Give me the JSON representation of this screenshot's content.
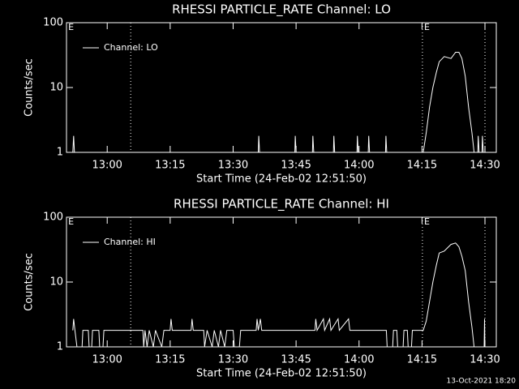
{
  "chart_data": [
    {
      "type": "line",
      "title": "RHESSI PARTICLE_RATE Channel: LO",
      "xlabel": "Start Time (24-Feb-02 12:51:50)",
      "ylabel": "Counts/sec",
      "yscale": "log",
      "legend": "upper left",
      "xlim": [
        770.3,
        872.7
      ],
      "ylim": [
        1,
        100
      ],
      "yticks": [
        1,
        10,
        100
      ],
      "xticks": [
        {
          "value": 780,
          "label": "13:00"
        },
        {
          "value": 795,
          "label": "13:15"
        },
        {
          "value": 810,
          "label": "13:30"
        },
        {
          "value": 825,
          "label": "13:45"
        },
        {
          "value": 840,
          "label": "14:00"
        },
        {
          "value": 855,
          "label": "14:15"
        },
        {
          "value": 870,
          "label": "14:30"
        }
      ],
      "vlines": [
        785.6,
        855.1,
        870.0
      ],
      "flags": [
        {
          "x": 770.7,
          "label": "E"
        },
        {
          "x": 855.5,
          "label": "E"
        }
      ],
      "x": [
        771.8,
        772.0,
        772.2,
        816.0,
        816.1,
        816.3,
        824.7,
        824.8,
        825.0,
        828.9,
        829.0,
        829.2,
        833.9,
        834.0,
        834.2,
        839.5,
        839.6,
        839.8,
        842.2,
        842.3,
        842.5,
        846.3,
        846.4,
        846.6,
        855.3,
        856.0,
        856.8,
        857.6,
        858.4,
        859.1,
        860.3,
        861.9,
        863.0,
        863.8,
        864.5,
        865.3,
        866.1,
        866.9,
        867.4,
        868.3,
        868.4,
        868.6,
        869.3,
        869.4,
        869.6,
        870.0
      ],
      "series": [
        {
          "name": "Channel: LO",
          "color": "#ffffff",
          "values": [
            1,
            1.8,
            1,
            1,
            1.8,
            1,
            1,
            1.8,
            1,
            1,
            1.8,
            1,
            1,
            1.8,
            1,
            1,
            1.8,
            1,
            1,
            1.8,
            1,
            1,
            1.8,
            1,
            1,
            2,
            5,
            10,
            17,
            25,
            30,
            28,
            35,
            35,
            28,
            15,
            5,
            2,
            1,
            1,
            1.8,
            1,
            1,
            1.8,
            1,
            1
          ]
        }
      ]
    },
    {
      "type": "line",
      "title": "RHESSI PARTICLE_RATE Channel: HI",
      "xlabel": "Start Time (24-Feb-02 12:51:50)",
      "ylabel": "Counts/sec",
      "yscale": "log",
      "legend": "upper left",
      "xlim": [
        770.3,
        872.7
      ],
      "ylim": [
        1,
        100
      ],
      "yticks": [
        1,
        10,
        100
      ],
      "xticks": [
        {
          "value": 780,
          "label": "13:00"
        },
        {
          "value": 795,
          "label": "13:15"
        },
        {
          "value": 810,
          "label": "13:30"
        },
        {
          "value": 825,
          "label": "13:45"
        },
        {
          "value": 840,
          "label": "14:00"
        },
        {
          "value": 855,
          "label": "14:15"
        },
        {
          "value": 870,
          "label": "14:30"
        }
      ],
      "vlines": [
        785.6,
        855.1,
        870.0
      ],
      "flags": [
        {
          "x": 770.7,
          "label": "E"
        },
        {
          "x": 855.5,
          "label": "E"
        }
      ],
      "x": [
        771.8,
        772.0,
        772.3,
        772.8,
        774.0,
        774.2,
        775.5,
        775.7,
        776.3,
        776.5,
        778.0,
        778.2,
        779.0,
        779.2,
        788.5,
        788.7,
        789.0,
        789.5,
        790.0,
        791.0,
        791.5,
        793.0,
        793.5,
        795.0,
        795.2,
        795.5,
        800.0,
        800.2,
        800.5,
        803.0,
        803.2,
        803.8,
        805.0,
        805.5,
        806.5,
        807.0,
        808.0,
        808.5,
        810.0,
        810.3,
        811.5,
        811.8,
        815.5,
        815.7,
        816.0,
        816.5,
        816.8,
        829.5,
        829.7,
        830.0,
        831.5,
        831.8,
        833.0,
        833.3,
        835.0,
        835.3,
        837.5,
        837.8,
        846.5,
        846.7,
        848.0,
        848.2,
        849.0,
        849.2,
        850.5,
        850.7,
        851.5,
        851.7,
        852.5,
        852.7,
        855.3,
        856.0,
        856.8,
        857.6,
        858.4,
        859.1,
        860.3,
        861.9,
        863.0,
        863.8,
        864.5,
        865.3,
        866.1,
        866.9,
        867.4,
        869.8,
        869.9,
        870.0
      ],
      "series": [
        {
          "name": "Channel: HI",
          "color": "#ffffff",
          "values": [
            1.8,
            2.7,
            1.8,
            1,
            1,
            1.8,
            1.8,
            1,
            1,
            1.8,
            1.8,
            1,
            1,
            1.8,
            1.8,
            1,
            1.8,
            1,
            1.8,
            1,
            1.8,
            1,
            1.8,
            1.8,
            2.7,
            1.8,
            1.8,
            2.7,
            1.8,
            1.8,
            1,
            1.8,
            1,
            1.8,
            1,
            1.8,
            1,
            1.8,
            1.8,
            1,
            1,
            1.8,
            1.8,
            2.7,
            1.8,
            2.7,
            1.8,
            1.8,
            2.7,
            1.8,
            2.7,
            1.8,
            2.7,
            1.8,
            2.7,
            1.8,
            2.7,
            1.8,
            1.8,
            1,
            1,
            1.8,
            1.8,
            1,
            1,
            1.8,
            1.8,
            1,
            1,
            1.8,
            1.8,
            2.5,
            5,
            10,
            18,
            28,
            30,
            38,
            40,
            35,
            25,
            15,
            5,
            2,
            1,
            1,
            2.7,
            1
          ]
        }
      ]
    }
  ],
  "footer": "13-Oct-2021 18:20"
}
